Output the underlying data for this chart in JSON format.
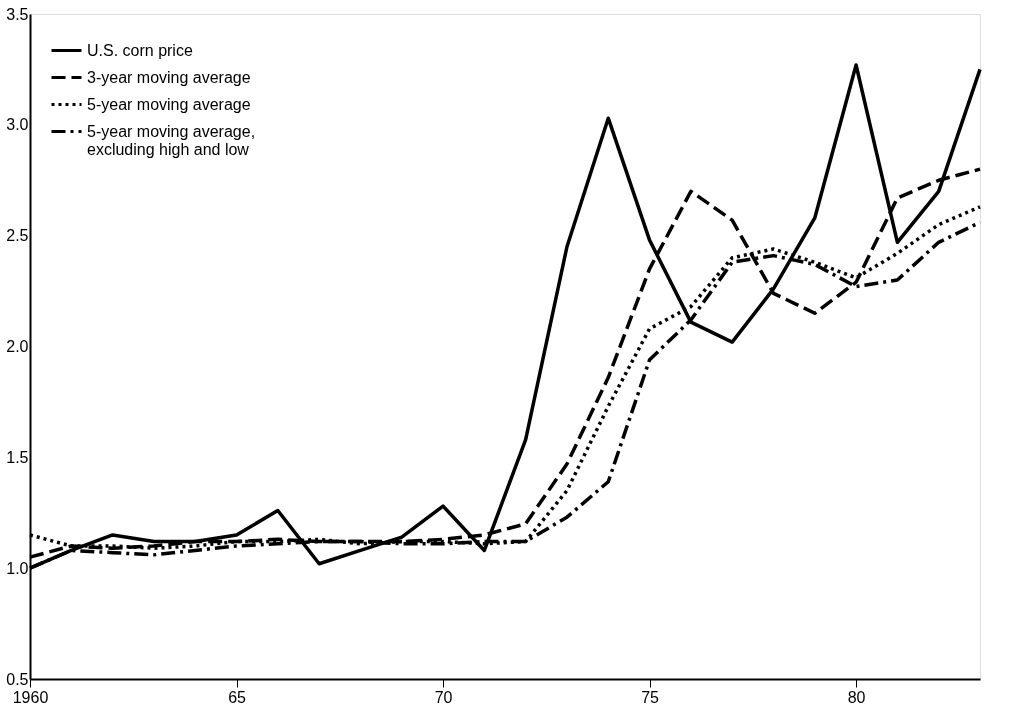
{
  "chart_data": {
    "type": "line",
    "x": [
      1960,
      1961,
      1962,
      1963,
      1964,
      1965,
      1966,
      1967,
      1968,
      1969,
      1970,
      1971,
      1972,
      1973,
      1974,
      1975,
      1976,
      1977,
      1978,
      1979,
      1980,
      1981,
      1982,
      1983
    ],
    "series": [
      {
        "name": "U.S. corn price",
        "color": "#000000",
        "line_style": "solid",
        "values": [
          1.0,
          1.08,
          1.15,
          1.12,
          1.12,
          1.15,
          1.26,
          1.02,
          1.08,
          1.14,
          1.28,
          1.08,
          1.58,
          2.45,
          3.03,
          2.48,
          2.11,
          2.02,
          2.26,
          2.58,
          3.27,
          2.47,
          2.7,
          3.25
        ]
      },
      {
        "name": "3-year moving average",
        "color": "#000000",
        "line_style": "dashed",
        "values": [
          1.05,
          1.1,
          1.09,
          1.1,
          1.12,
          1.12,
          1.13,
          1.12,
          1.12,
          1.12,
          1.13,
          1.15,
          1.2,
          1.47,
          1.86,
          2.35,
          2.7,
          2.57,
          2.24,
          2.15,
          2.29,
          2.67,
          2.75,
          2.8
        ]
      },
      {
        "name": "5-year moving average",
        "color": "#000000",
        "line_style": "dotted",
        "values": [
          1.15,
          1.1,
          1.1,
          1.09,
          1.1,
          1.12,
          1.12,
          1.13,
          1.11,
          1.12,
          1.12,
          1.11,
          1.12,
          1.35,
          1.73,
          2.08,
          2.18,
          2.4,
          2.44,
          2.38,
          2.31,
          2.42,
          2.55,
          2.63
        ]
      },
      {
        "name": "5-year moving average,\nexcluding high and low",
        "color": "#000000",
        "line_style": "dashdot",
        "values": [
          1.0,
          1.08,
          1.07,
          1.06,
          1.08,
          1.1,
          1.11,
          1.12,
          1.12,
          1.11,
          1.11,
          1.12,
          1.12,
          1.23,
          1.39,
          1.94,
          2.12,
          2.38,
          2.41,
          2.37,
          2.27,
          2.3,
          2.47,
          2.56
        ]
      }
    ],
    "xlim": [
      1960,
      1983
    ],
    "xticks": [
      1960,
      {
        "value": 1965,
        "label": "65"
      },
      {
        "value": 1970,
        "label": "70"
      },
      {
        "value": 1975,
        "label": "75"
      },
      {
        "value": 1980,
        "label": "80"
      }
    ],
    "ylim": [
      0.5,
      3.5
    ],
    "yticks": [
      0.5,
      {
        "value": 1,
        "label": "1.0"
      },
      1.5,
      {
        "value": 2,
        "label": "2.0"
      },
      2.5,
      {
        "value": 3,
        "label": "3.0"
      },
      3.5
    ],
    "grid": false,
    "legend": "top left",
    "marker": "none"
  }
}
